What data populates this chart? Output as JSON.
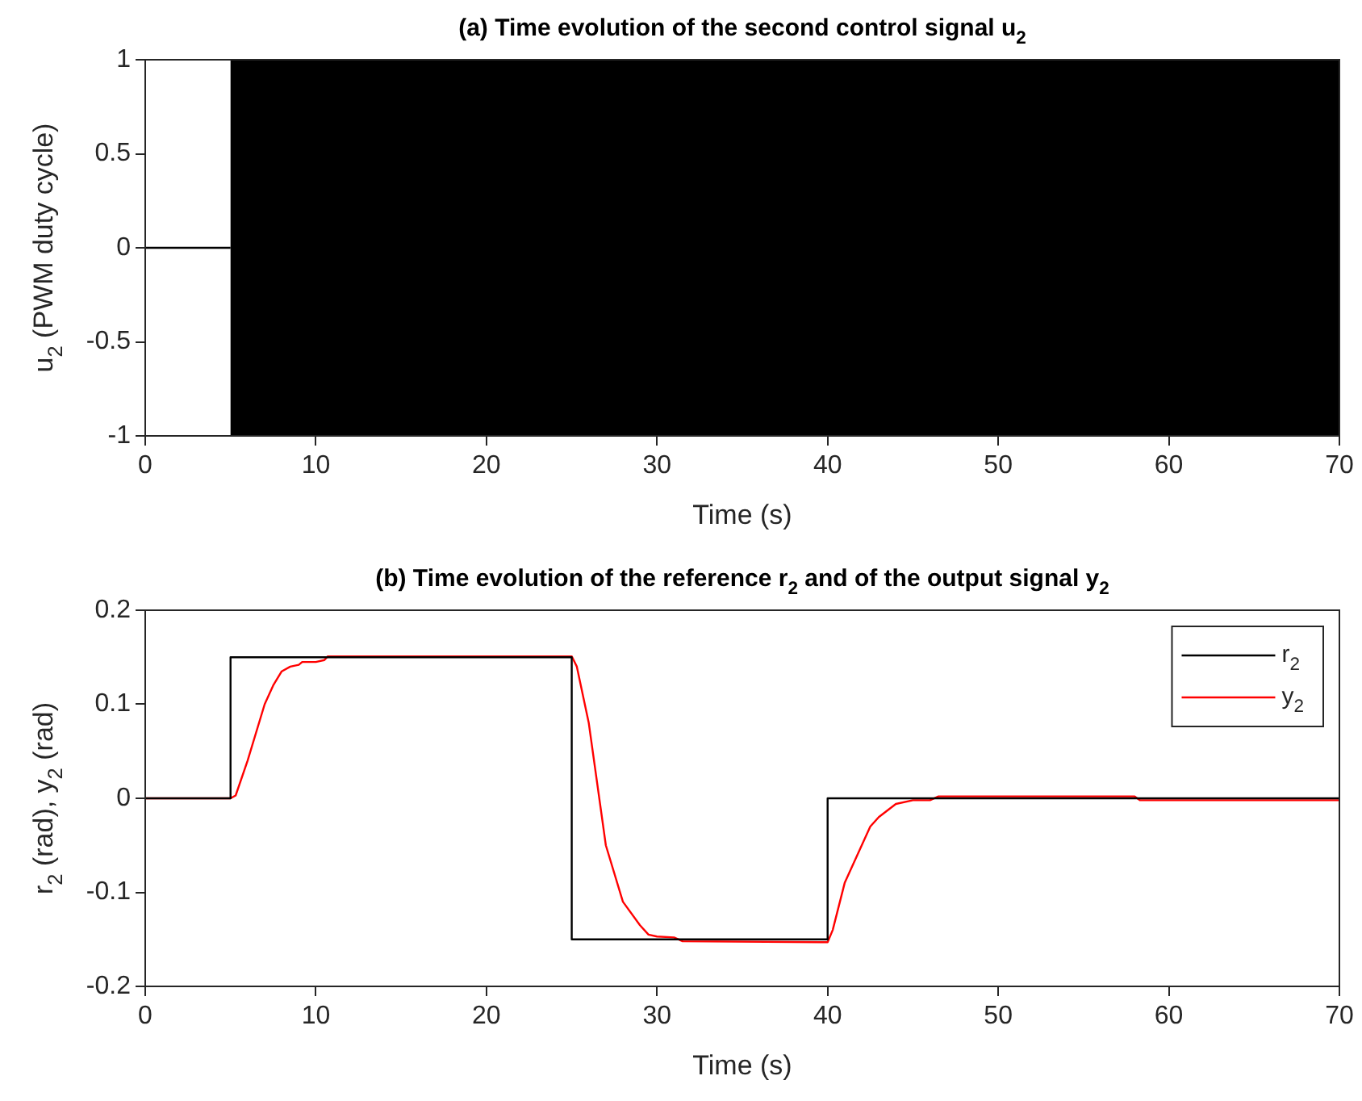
{
  "chart_data": [
    {
      "type": "line",
      "title": "(a) Time evolution of the second control signal u$_{2}$",
      "xlabel": "Time (s)",
      "ylabel": "u$_{2}$ (PWM duty cycle)",
      "xlim": [
        0,
        70
      ],
      "xticks": [
        0,
        10,
        20,
        30,
        40,
        50,
        60,
        70
      ],
      "ylim": [
        -1,
        1
      ],
      "yticks": [
        -1,
        -0.5,
        0,
        0.5,
        1
      ],
      "grid": false,
      "legend": false,
      "bands": [
        {
          "axis": "x",
          "from": 5,
          "to": 70,
          "color": "#000000"
        }
      ],
      "series": [
        {
          "color": "#000000",
          "x": [
            0,
            5
          ],
          "values": [
            0,
            0
          ]
        }
      ]
    },
    {
      "type": "line",
      "title": "(b) Time evolution of the reference r$_{2}$ and of the output signal y$_{2}$",
      "xlabel": "Time (s)",
      "ylabel": "r$_{2}$ (rad), y$_{2}$ (rad)",
      "xlim": [
        0,
        70
      ],
      "xticks": [
        0,
        10,
        20,
        30,
        40,
        50,
        60,
        70
      ],
      "ylim": [
        -0.2,
        0.2
      ],
      "yticks": [
        -0.2,
        -0.1,
        0,
        0.1,
        0.2
      ],
      "grid": false,
      "legend": "top right",
      "series": [
        {
          "name": "r$_{2}$",
          "color": "#000000",
          "x": [
            0,
            5,
            5,
            25,
            25,
            40,
            40,
            70
          ],
          "values": [
            0,
            0,
            0.15,
            0.15,
            -0.15,
            -0.15,
            0,
            0
          ]
        },
        {
          "name": "y$_{2}$",
          "color": "#ff0000",
          "x": [
            0,
            5,
            5.3,
            6,
            7,
            7.5,
            8,
            8.5,
            9,
            9.2,
            10,
            10.5,
            10.7,
            25,
            25.3,
            26,
            27,
            28,
            29,
            29.5,
            30,
            31,
            31.5,
            40,
            40.3,
            41,
            42,
            42.5,
            43,
            44,
            45,
            46,
            46.5,
            58,
            58.3,
            70
          ],
          "values": [
            0,
            0,
            0.003,
            0.04,
            0.1,
            0.12,
            0.135,
            0.14,
            0.142,
            0.145,
            0.145,
            0.147,
            0.151,
            0.151,
            0.14,
            0.08,
            -0.05,
            -0.11,
            -0.135,
            -0.145,
            -0.147,
            -0.148,
            -0.152,
            -0.153,
            -0.14,
            -0.09,
            -0.05,
            -0.03,
            -0.02,
            -0.006,
            -0.002,
            -0.002,
            0.002,
            0.002,
            -0.002,
            -0.002
          ]
        }
      ]
    }
  ]
}
